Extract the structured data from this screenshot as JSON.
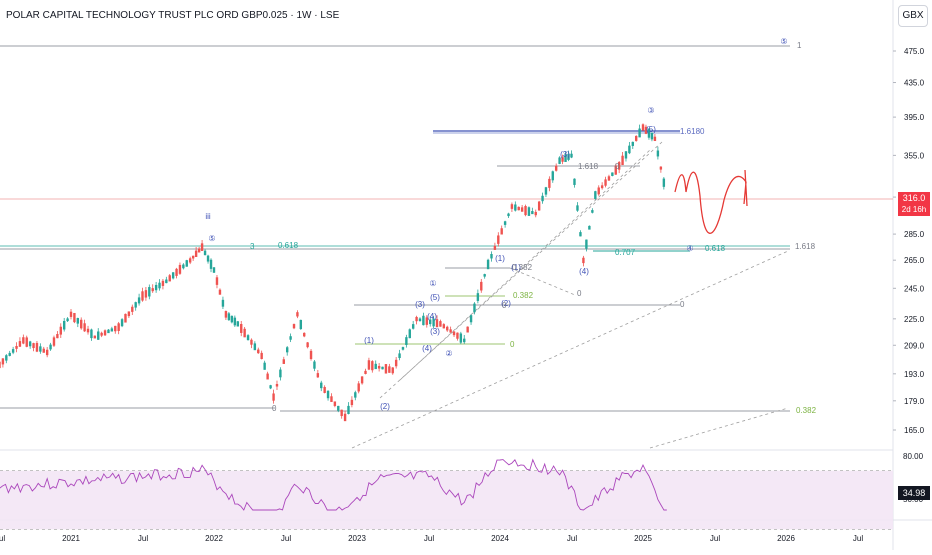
{
  "header": {
    "title": "POLAR CAPITAL TECHNOLOGY TRUST PLC ORD GBP0.025 · 1W · LSE",
    "currency": "GBX"
  },
  "price_badge": {
    "price": "316.0",
    "countdown": "2d 16h",
    "color": "#f23645"
  },
  "rsi_badge": {
    "value": "34.98",
    "color": "#131722"
  },
  "colors": {
    "up": "#26a69a",
    "down": "#ef5350",
    "wave": "#3f51b5",
    "fib_green": "#7cb342",
    "rsi": "#ab47bc",
    "sketch": "#e53935"
  },
  "chart_data": {
    "type": "candlestick",
    "price_axis": {
      "ticks": [
        "475.0",
        "435.0",
        "395.0",
        "355.0",
        "316.0",
        "285.0",
        "265.0",
        "245.0",
        "225.0",
        "209.0",
        "193.0",
        "179.0",
        "165.0"
      ],
      "scale": "log"
    },
    "rsi_axis": {
      "ticks": [
        "80.00",
        "50.00"
      ]
    },
    "time_axis": {
      "ticks": [
        "Jul",
        "2021",
        "Jul",
        "2022",
        "Jul",
        "2023",
        "Jul",
        "2024",
        "Jul",
        "2025",
        "Jul",
        "2026",
        "Jul"
      ]
    },
    "price_path": [
      {
        "d": "2020-07",
        "p": 198
      },
      {
        "d": "2020-09",
        "p": 212
      },
      {
        "d": "2020-11",
        "p": 205
      },
      {
        "d": "2021-01",
        "p": 228
      },
      {
        "d": "2021-03",
        "p": 214
      },
      {
        "d": "2021-05",
        "p": 220
      },
      {
        "d": "2021-07",
        "p": 240
      },
      {
        "d": "2021-09",
        "p": 250
      },
      {
        "d": "2021-11",
        "p": 265
      },
      {
        "d": "2021-12",
        "p": 275
      },
      {
        "d": "2022-01",
        "p": 258
      },
      {
        "d": "2022-02",
        "p": 228
      },
      {
        "d": "2022-03",
        "p": 222
      },
      {
        "d": "2022-05",
        "p": 203
      },
      {
        "d": "2022-06",
        "p": 181
      },
      {
        "d": "2022-08",
        "p": 228
      },
      {
        "d": "2022-10",
        "p": 187
      },
      {
        "d": "2022-12",
        "p": 171
      },
      {
        "d": "2023-02",
        "p": 198
      },
      {
        "d": "2023-04",
        "p": 195
      },
      {
        "d": "2023-06",
        "p": 225
      },
      {
        "d": "2023-08",
        "p": 222
      },
      {
        "d": "2023-10",
        "p": 212
      },
      {
        "d": "2023-12",
        "p": 262
      },
      {
        "d": "2024-02",
        "p": 308
      },
      {
        "d": "2024-04",
        "p": 302
      },
      {
        "d": "2024-06",
        "p": 350
      },
      {
        "d": "2024-07",
        "p": 355
      },
      {
        "d": "2024-08",
        "p": 265
      },
      {
        "d": "2024-09",
        "p": 318
      },
      {
        "d": "2024-11",
        "p": 345
      },
      {
        "d": "2025-01",
        "p": 384
      },
      {
        "d": "2025-02",
        "p": 372
      },
      {
        "d": "2025-03",
        "p": 316
      }
    ],
    "rsi_path": [
      {
        "d": "2020-07",
        "v": 58
      },
      {
        "d": "2021-01",
        "v": 62
      },
      {
        "d": "2021-07",
        "v": 66
      },
      {
        "d": "2021-12",
        "v": 70
      },
      {
        "d": "2022-03",
        "v": 48
      },
      {
        "d": "2022-06",
        "v": 35
      },
      {
        "d": "2022-08",
        "v": 62
      },
      {
        "d": "2022-11",
        "v": 40
      },
      {
        "d": "2023-03",
        "v": 64
      },
      {
        "d": "2023-07",
        "v": 66
      },
      {
        "d": "2023-10",
        "v": 48
      },
      {
        "d": "2024-01",
        "v": 78
      },
      {
        "d": "2024-06",
        "v": 70
      },
      {
        "d": "2024-08",
        "v": 42
      },
      {
        "d": "2024-11",
        "v": 64
      },
      {
        "d": "2025-01",
        "v": 72
      },
      {
        "d": "2025-03",
        "v": 35
      }
    ],
    "annotations": {
      "wave_labels": [
        "⑤",
        "iii",
        "⑤",
        "③",
        "①",
        "(3)",
        "(5)",
        "④",
        "(1)",
        "(2)",
        "(4)",
        "②",
        "(3)",
        "(4)",
        "(1)",
        "(2)",
        "(1)",
        "(3)",
        "(4)",
        "(5)"
      ],
      "fib_labels": [
        "1",
        "0.618",
        "0.618",
        "0.707",
        "1.618",
        "0",
        "1.618",
        "0",
        "0",
        "0",
        "0.382",
        "0.382",
        "0.382",
        "0",
        "0",
        "3",
        "1.6180"
      ]
    }
  }
}
